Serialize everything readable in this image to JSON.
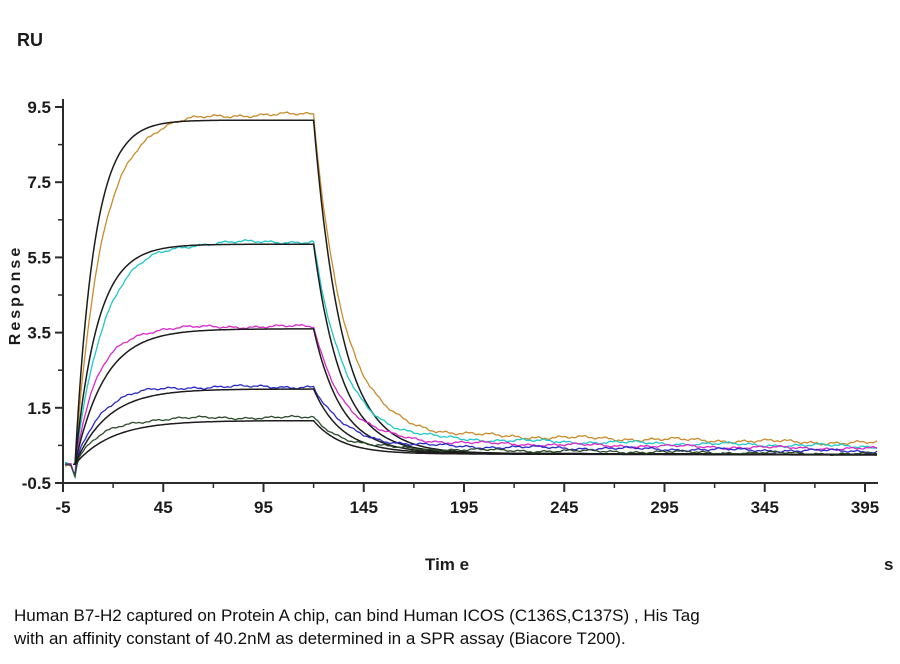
{
  "caption": {
    "line1": "Human B7-H2 captured on Protein A chip, can bind Human ICOS (C136S,C137S) , His Tag",
    "line2": "with an affinity constant of 40.2nM as determined in a SPR assay (Biacore T200)."
  },
  "chart_data": {
    "type": "line",
    "title": "",
    "xlabel": "Tim e",
    "x_unit": "s",
    "ylabel": "Response",
    "y_unit": "RU",
    "xlim": [
      -5,
      400
    ],
    "ylim": [
      -0.5,
      9.5
    ],
    "x_ticks": [
      -5,
      45,
      95,
      145,
      195,
      245,
      295,
      345,
      395
    ],
    "x_minor_ticks": [
      20,
      70,
      120,
      170,
      220,
      270,
      320,
      370
    ],
    "y_ticks": [
      9.5,
      7.5,
      5.5,
      3.5,
      1.5,
      -0.5
    ],
    "y_minor_ticks": [
      8.5,
      6.5,
      4.5,
      2.5,
      0.5
    ],
    "grid": false,
    "legend": "none",
    "association_start_s": 0,
    "dissociation_start_s": 120,
    "end_s": 400,
    "plateau_values_RU": [
      9.2,
      5.9,
      3.6,
      2.0,
      1.2
    ],
    "axis_color": "#2b2b2b",
    "fit_color": "#1c1c1c",
    "series": [
      {
        "name": "trace-1-orange",
        "role": "data",
        "color": "#C98B2B",
        "rmax": 9.3,
        "kobs": 0.075,
        "koff": 0.068,
        "tail": 0.85,
        "tdec": 0.0015,
        "noise": 0.055,
        "dip": 0.32
      },
      {
        "name": "trace-1-fit",
        "role": "fit",
        "color": "#1c1c1c",
        "rmax": 9.15,
        "kobs": 0.105,
        "koff": 0.072,
        "tail": 0.3,
        "tdec": 0.0005,
        "noise": 0,
        "dip": 0
      },
      {
        "name": "trace-2-cyan",
        "role": "data",
        "color": "#1FC8C8",
        "rmax": 5.92,
        "kobs": 0.07,
        "koff": 0.068,
        "tail": 0.72,
        "tdec": 0.0015,
        "noise": 0.05,
        "dip": 0.32
      },
      {
        "name": "trace-2-fit",
        "role": "fit",
        "color": "#1c1c1c",
        "rmax": 5.85,
        "kobs": 0.09,
        "koff": 0.072,
        "tail": 0.3,
        "tdec": 0.0005,
        "noise": 0,
        "dip": 0
      },
      {
        "name": "trace-3-magenta",
        "role": "data",
        "color": "#D929C9",
        "rmax": 3.66,
        "kobs": 0.088,
        "koff": 0.068,
        "tail": 0.62,
        "tdec": 0.0015,
        "noise": 0.045,
        "dip": 0.32
      },
      {
        "name": "trace-3-fit",
        "role": "fit",
        "color": "#1c1c1c",
        "rmax": 3.6,
        "kobs": 0.068,
        "koff": 0.072,
        "tail": 0.3,
        "tdec": 0.0005,
        "noise": 0,
        "dip": 0
      },
      {
        "name": "trace-4-blue",
        "role": "data",
        "color": "#2A2AC8",
        "rmax": 2.06,
        "kobs": 0.082,
        "koff": 0.068,
        "tail": 0.52,
        "tdec": 0.0015,
        "noise": 0.045,
        "dip": 0.32
      },
      {
        "name": "trace-4-fit",
        "role": "fit",
        "color": "#1c1c1c",
        "rmax": 2.0,
        "kobs": 0.062,
        "koff": 0.072,
        "tail": 0.3,
        "tdec": 0.0005,
        "noise": 0,
        "dip": 0
      },
      {
        "name": "trace-5-darkgreen",
        "role": "data",
        "color": "#2C4A2C",
        "rmax": 1.24,
        "kobs": 0.075,
        "koff": 0.068,
        "tail": 0.42,
        "tdec": 0.0015,
        "noise": 0.04,
        "dip": 0.32
      },
      {
        "name": "trace-5-fit",
        "role": "fit",
        "color": "#1c1c1c",
        "rmax": 1.16,
        "kobs": 0.054,
        "koff": 0.072,
        "tail": 0.28,
        "tdec": 0.0005,
        "noise": 0,
        "dip": 0
      }
    ]
  }
}
